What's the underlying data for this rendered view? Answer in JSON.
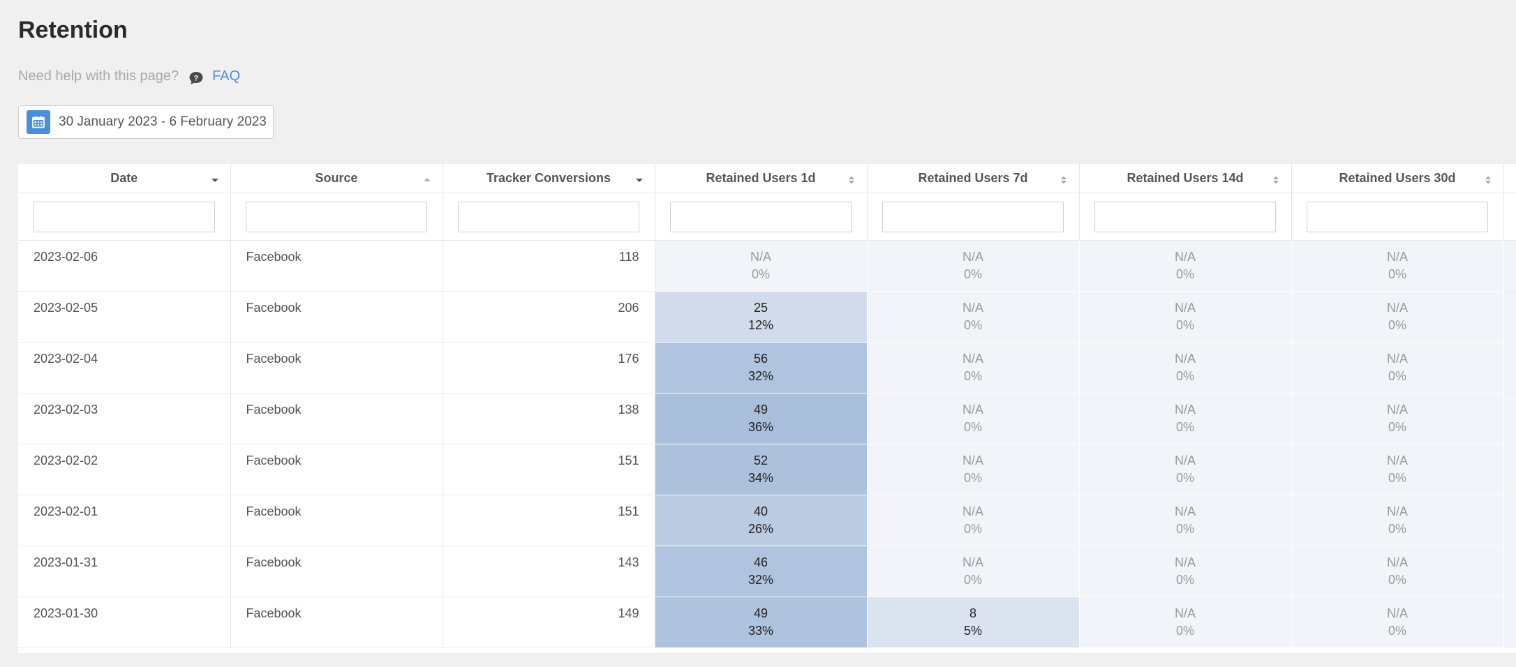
{
  "page": {
    "title": "Retention",
    "help_text": "Need help with this page?",
    "help_icon": "question-bubble-icon",
    "faq_label": "FAQ"
  },
  "date_picker": {
    "icon": "calendar-icon",
    "label": "30 January 2023 - 6 February 2023"
  },
  "table": {
    "columns": [
      {
        "label": "Date",
        "sort": "desc"
      },
      {
        "label": "Source",
        "sort": "asc"
      },
      {
        "label": "Tracker Conversions",
        "sort": "desc"
      },
      {
        "label": "Retained Users 1d",
        "sort": "none"
      },
      {
        "label": "Retained Users 7d",
        "sort": "none"
      },
      {
        "label": "Retained Users 14d",
        "sort": "none"
      },
      {
        "label": "Retained Users 30d",
        "sort": "none"
      }
    ],
    "filters": [
      "",
      "",
      "",
      "",
      "",
      "",
      ""
    ],
    "rows": [
      {
        "date": "2023-02-06",
        "source": "Facebook",
        "conversions": "118",
        "r1": {
          "count": "N/A",
          "pct": "0%",
          "level": 0
        },
        "r7": {
          "count": "N/A",
          "pct": "0%",
          "level": 0
        },
        "r14": {
          "count": "N/A",
          "pct": "0%",
          "level": 0
        },
        "r30": {
          "count": "N/A",
          "pct": "0%",
          "level": 0
        }
      },
      {
        "date": "2023-02-05",
        "source": "Facebook",
        "conversions": "206",
        "r1": {
          "count": "25",
          "pct": "12%",
          "level": 0.12
        },
        "r7": {
          "count": "N/A",
          "pct": "0%",
          "level": 0
        },
        "r14": {
          "count": "N/A",
          "pct": "0%",
          "level": 0
        },
        "r30": {
          "count": "N/A",
          "pct": "0%",
          "level": 0
        }
      },
      {
        "date": "2023-02-04",
        "source": "Facebook",
        "conversions": "176",
        "r1": {
          "count": "56",
          "pct": "32%",
          "level": 0.32
        },
        "r7": {
          "count": "N/A",
          "pct": "0%",
          "level": 0
        },
        "r14": {
          "count": "N/A",
          "pct": "0%",
          "level": 0
        },
        "r30": {
          "count": "N/A",
          "pct": "0%",
          "level": 0
        }
      },
      {
        "date": "2023-02-03",
        "source": "Facebook",
        "conversions": "138",
        "r1": {
          "count": "49",
          "pct": "36%",
          "level": 0.36
        },
        "r7": {
          "count": "N/A",
          "pct": "0%",
          "level": 0
        },
        "r14": {
          "count": "N/A",
          "pct": "0%",
          "level": 0
        },
        "r30": {
          "count": "N/A",
          "pct": "0%",
          "level": 0
        }
      },
      {
        "date": "2023-02-02",
        "source": "Facebook",
        "conversions": "151",
        "r1": {
          "count": "52",
          "pct": "34%",
          "level": 0.34
        },
        "r7": {
          "count": "N/A",
          "pct": "0%",
          "level": 0
        },
        "r14": {
          "count": "N/A",
          "pct": "0%",
          "level": 0
        },
        "r30": {
          "count": "N/A",
          "pct": "0%",
          "level": 0
        }
      },
      {
        "date": "2023-02-01",
        "source": "Facebook",
        "conversions": "151",
        "r1": {
          "count": "40",
          "pct": "26%",
          "level": 0.26
        },
        "r7": {
          "count": "N/A",
          "pct": "0%",
          "level": 0
        },
        "r14": {
          "count": "N/A",
          "pct": "0%",
          "level": 0
        },
        "r30": {
          "count": "N/A",
          "pct": "0%",
          "level": 0
        }
      },
      {
        "date": "2023-01-31",
        "source": "Facebook",
        "conversions": "143",
        "r1": {
          "count": "46",
          "pct": "32%",
          "level": 0.32
        },
        "r7": {
          "count": "N/A",
          "pct": "0%",
          "level": 0
        },
        "r14": {
          "count": "N/A",
          "pct": "0%",
          "level": 0
        },
        "r30": {
          "count": "N/A",
          "pct": "0%",
          "level": 0
        }
      },
      {
        "date": "2023-01-30",
        "source": "Facebook",
        "conversions": "149",
        "r1": {
          "count": "49",
          "pct": "33%",
          "level": 0.33
        },
        "r7": {
          "count": "8",
          "pct": "5%",
          "level": 0.05
        },
        "r14": {
          "count": "N/A",
          "pct": "0%",
          "level": 0
        },
        "r30": {
          "count": "N/A",
          "pct": "0%",
          "level": 0
        }
      }
    ]
  },
  "colors": {
    "accent": "#4a90d9",
    "heat_none": "#f2f4fa",
    "heat_low": "#e4e9f3",
    "heat_high": "#aabfdc"
  }
}
